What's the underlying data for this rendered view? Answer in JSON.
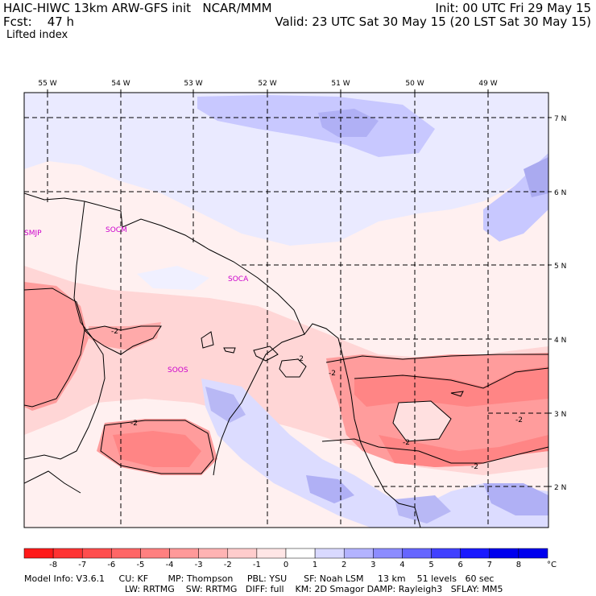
{
  "header": {
    "title_line": "HAIC-HIWC 13km ARW-GFS init   NCAR/MMM",
    "fcst_line": "Fcst:    47 h",
    "init_line": "Init: 00 UTC Fri 29 May 15",
    "valid_line": "Valid: 23 UTC Sat 30 May 15 (20 LST Sat 30 May 15)"
  },
  "field_name": "Lifted index",
  "lon_labels": [
    "55 W",
    "54 W",
    "53 W",
    "52 W",
    "51 W",
    "50 W",
    "49 W"
  ],
  "lat_labels": [
    "7 N",
    "6 N",
    "5 N",
    "4 N",
    "3 N",
    "2 N"
  ],
  "region_labels": [
    {
      "id": "smjp",
      "text": "SMJP",
      "color": "#cc00cc"
    },
    {
      "id": "socm",
      "text": "SOCM",
      "color": "#cc00cc"
    },
    {
      "id": "soca",
      "text": "SOCA",
      "color": "#cc00cc"
    },
    {
      "id": "soos",
      "text": "SOOS",
      "color": "#cc00cc"
    }
  ],
  "contour_labels": [
    "-2",
    "-2",
    "-2",
    "-2",
    "-2",
    "-2",
    "-2"
  ],
  "colorbar": {
    "ticks": [
      "-8",
      "-7",
      "-6",
      "-5",
      "-4",
      "-3",
      "-2",
      "-1",
      "0",
      "1",
      "2",
      "3",
      "4",
      "5",
      "6",
      "7",
      "8"
    ],
    "unit": "°C",
    "colors": [
      "#ff1a1a",
      "#ff3333",
      "#ff4d4d",
      "#ff6666",
      "#ff8080",
      "#ff9999",
      "#ffb3b3",
      "#ffcccc",
      "#ffe6e6",
      "#ffffff",
      "#d9d9ff",
      "#b3b3ff",
      "#8c8cff",
      "#6666ff",
      "#4040ff",
      "#1a1aff",
      "#0000ee"
    ]
  },
  "footer": {
    "line1": "Model Info: V3.6.1     CU: KF       MP: Thompson     PBL: YSU      SF: Noah LSM     13 km    51 levels   60 sec",
    "line2": "LW: RRTMG    SW: RRTMG   DIFF: full    KM: 2D Smagor DAMP: Rayleigh3   SFLAY: MM5"
  }
}
